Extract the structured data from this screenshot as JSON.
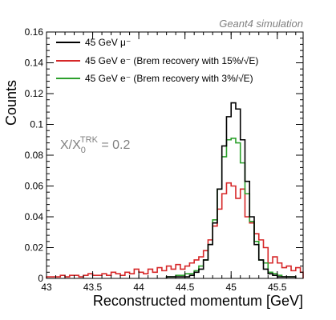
{
  "chart_data": {
    "type": "line",
    "subtype": "step-histogram",
    "title": "",
    "corner_label": "Geant4 simulation",
    "xlabel": "Reconstructed momentum [GeV]",
    "ylabel": "Counts",
    "xlim": [
      43,
      45.78
    ],
    "ylim": [
      0,
      0.16
    ],
    "x_ticks": [
      {
        "value": 43,
        "label": "43"
      },
      {
        "value": 43.5,
        "label": "43.5"
      },
      {
        "value": 44,
        "label": "44"
      },
      {
        "value": 44.5,
        "label": "44.5"
      },
      {
        "value": 45,
        "label": "45"
      },
      {
        "value": 45.5,
        "label": "45.5"
      }
    ],
    "y_ticks": [
      {
        "value": 0,
        "label": "0"
      },
      {
        "value": 0.02,
        "label": "0.02"
      },
      {
        "value": 0.04,
        "label": "0.04"
      },
      {
        "value": 0.06,
        "label": "0.06"
      },
      {
        "value": 0.08,
        "label": "0.08"
      },
      {
        "value": 0.1,
        "label": "0.1"
      },
      {
        "value": 0.12,
        "label": "0.12"
      },
      {
        "value": 0.14,
        "label": "0.14"
      },
      {
        "value": 0.16,
        "label": "0.16"
      }
    ],
    "annotation": {
      "main": "X/X",
      "sub": "0",
      "sup": "TRK",
      "rest": " = 0.2"
    },
    "legend_position": "top-left",
    "grid": false,
    "bin_width": 0.05,
    "series": [
      {
        "name": "45 GeV μ⁻",
        "color": "#000000",
        "bins_x": [
          44.3,
          44.35,
          44.4,
          44.45,
          44.5,
          44.55,
          44.6,
          44.65,
          44.7,
          44.75,
          44.8,
          44.85,
          44.9,
          44.95,
          45.0,
          45.05,
          45.1,
          45.15,
          45.2,
          45.25,
          45.3,
          45.35,
          45.4,
          45.45,
          45.5,
          45.55,
          45.6,
          45.65
        ],
        "values": [
          0.001,
          0.001,
          0.001,
          0.001,
          0.001,
          0.002,
          0.004,
          0.006,
          0.012,
          0.022,
          0.036,
          0.058,
          0.086,
          0.105,
          0.114,
          0.11,
          0.09,
          0.063,
          0.04,
          0.022,
          0.012,
          0.006,
          0.003,
          0.002,
          0.001,
          0.001,
          0.001,
          0.001
        ]
      },
      {
        "name": "45 GeV e⁻ (Brem recovery with 15%/√E)",
        "color": "#d62728",
        "bins_x": [
          43.0,
          43.05,
          43.1,
          43.15,
          43.2,
          43.25,
          43.3,
          43.35,
          43.4,
          43.45,
          43.5,
          43.55,
          43.6,
          43.65,
          43.7,
          43.75,
          43.8,
          43.85,
          43.9,
          43.95,
          44.0,
          44.05,
          44.1,
          44.15,
          44.2,
          44.25,
          44.3,
          44.35,
          44.4,
          44.45,
          44.5,
          44.55,
          44.6,
          44.65,
          44.7,
          44.75,
          44.8,
          44.85,
          44.9,
          44.95,
          45.0,
          45.05,
          45.1,
          45.15,
          45.2,
          45.25,
          45.3,
          45.35,
          45.4,
          45.45,
          45.5,
          45.55,
          45.6,
          45.65,
          45.7,
          45.75
        ],
        "values": [
          0.001,
          0.001,
          0.001,
          0.002,
          0.001,
          0.002,
          0.002,
          0.001,
          0.002,
          0.003,
          0.002,
          0.002,
          0.003,
          0.002,
          0.004,
          0.003,
          0.002,
          0.004,
          0.003,
          0.006,
          0.004,
          0.003,
          0.006,
          0.004,
          0.007,
          0.005,
          0.008,
          0.006,
          0.009,
          0.006,
          0.008,
          0.01,
          0.012,
          0.014,
          0.018,
          0.025,
          0.034,
          0.045,
          0.055,
          0.062,
          0.06,
          0.052,
          0.058,
          0.04,
          0.036,
          0.029,
          0.025,
          0.02,
          0.01,
          0.014,
          0.01,
          0.007,
          0.008,
          0.005,
          0.007,
          0.004
        ]
      },
      {
        "name": "45 GeV e⁻ (Brem recovery with 3%/√E)",
        "color": "#2ca02c",
        "bins_x": [
          44.3,
          44.35,
          44.4,
          44.45,
          44.5,
          44.55,
          44.6,
          44.65,
          44.7,
          44.75,
          44.8,
          44.85,
          44.9,
          44.95,
          45.0,
          45.05,
          45.1,
          45.15,
          45.2,
          45.25,
          45.3,
          45.35,
          45.4,
          45.45,
          45.5,
          45.55,
          45.6,
          45.65
        ],
        "values": [
          0.001,
          0.001,
          0.002,
          0.002,
          0.003,
          0.003,
          0.005,
          0.008,
          0.012,
          0.022,
          0.038,
          0.058,
          0.079,
          0.09,
          0.091,
          0.088,
          0.075,
          0.055,
          0.037,
          0.024,
          0.012,
          0.01,
          0.004,
          0.003,
          0.002,
          0.001,
          0.001,
          0.001
        ]
      }
    ]
  }
}
